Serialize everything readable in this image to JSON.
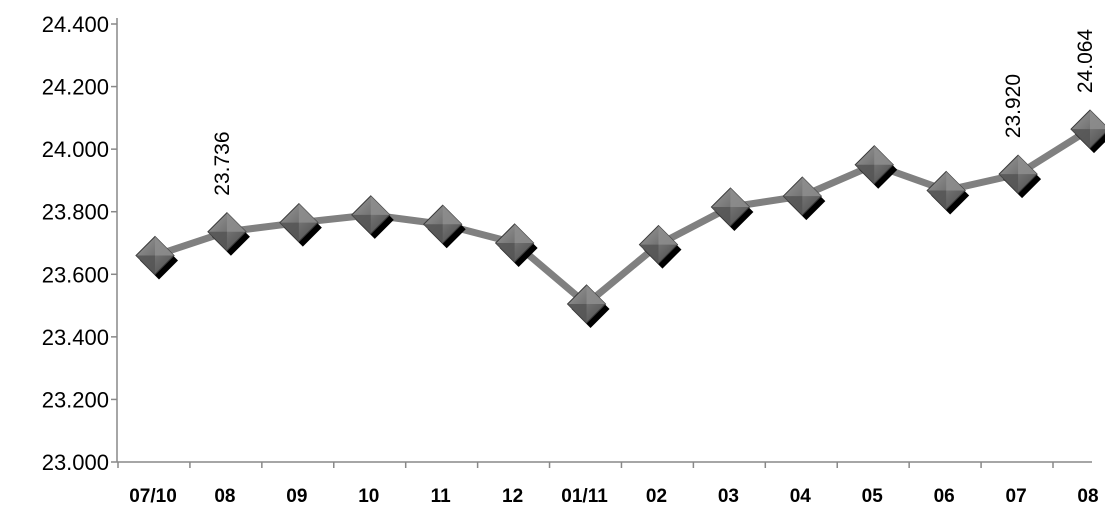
{
  "chart_data": {
    "type": "line",
    "categories": [
      "07/10",
      "08",
      "09",
      "10",
      "11",
      "12",
      "01/11",
      "02",
      "03",
      "04",
      "05",
      "06",
      "07",
      "08"
    ],
    "values": [
      23660,
      23736,
      23765,
      23790,
      23760,
      23700,
      23505,
      23695,
      23815,
      23850,
      23950,
      23868,
      23920,
      24064
    ],
    "data_labels": [
      {
        "index": 1,
        "text": "23.736"
      },
      {
        "index": 12,
        "text": "23.920"
      },
      {
        "index": 13,
        "text": "24.064"
      }
    ],
    "ylim": [
      23000,
      24400
    ],
    "yticks": [
      {
        "value": 23000,
        "label": "23.000"
      },
      {
        "value": 23200,
        "label": "23.200"
      },
      {
        "value": 23400,
        "label": "23.400"
      },
      {
        "value": 23600,
        "label": "23.600"
      },
      {
        "value": 23800,
        "label": "23.800"
      },
      {
        "value": 24000,
        "label": "24.000"
      },
      {
        "value": 24200,
        "label": "24.200"
      },
      {
        "value": 24400,
        "label": "24.400"
      }
    ],
    "title": "",
    "xlabel": "",
    "ylabel": "",
    "grid": false,
    "legend": "none",
    "line_color": "#808080",
    "marker_color": "#6e6e6e",
    "marker_shadow_color": "#000000",
    "axis_color": "#888888"
  }
}
